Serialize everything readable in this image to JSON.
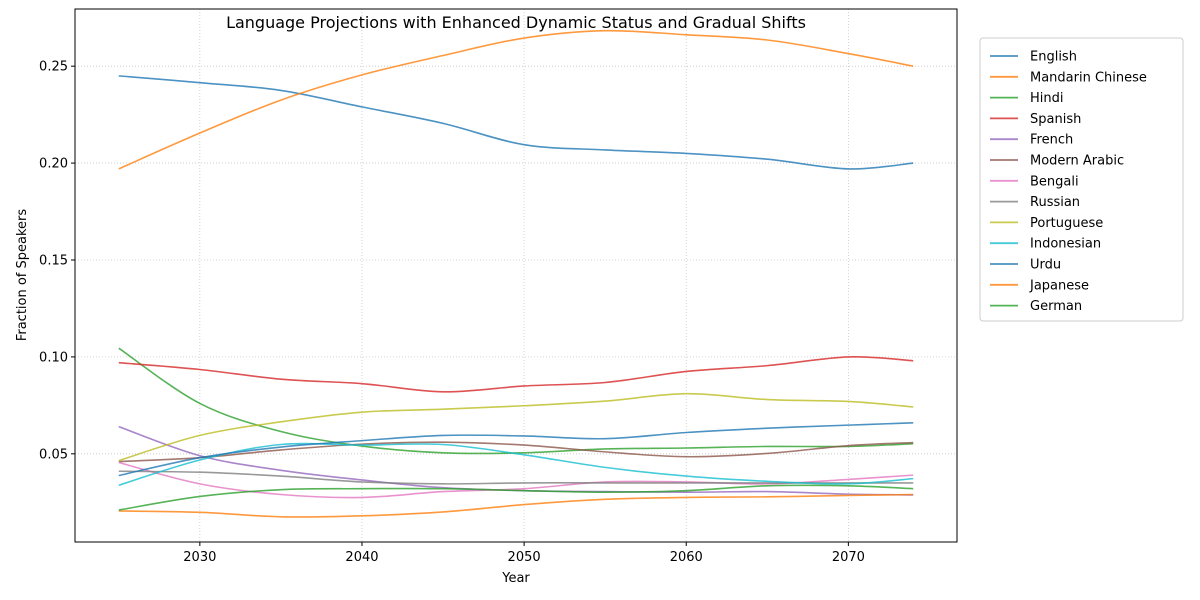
{
  "chart_data": {
    "type": "line",
    "title": "Language Projections with Enhanced Dynamic Status and Gradual Shifts",
    "xlabel": "Year",
    "ylabel": "Fraction of Speakers",
    "xlim": [
      2022.3,
      2076.7
    ],
    "ylim": [
      0.0045,
      0.2795
    ],
    "xticks": [
      2030,
      2040,
      2050,
      2060,
      2070
    ],
    "yticks": [
      0.05,
      0.1,
      0.15,
      0.2,
      0.25
    ],
    "ytick_labels": [
      "0.05",
      "0.10",
      "0.15",
      "0.20",
      "0.25"
    ],
    "grid": true,
    "legend_position": "outside-top-right",
    "x_knots": [
      2025,
      2030,
      2035,
      2040,
      2045,
      2050,
      2055,
      2060,
      2065,
      2070,
      2074
    ],
    "series": [
      {
        "name": "English",
        "color": "#1f77b4",
        "values": [
          0.245,
          0.2415,
          0.2375,
          0.229,
          0.2205,
          0.2095,
          0.2068,
          0.205,
          0.202,
          0.197,
          0.2
        ]
      },
      {
        "name": "Mandarin Chinese",
        "color": "#ff7f0e",
        "values": [
          0.197,
          0.2155,
          0.2325,
          0.2455,
          0.2555,
          0.2645,
          0.2683,
          0.2662,
          0.2635,
          0.2565,
          0.25
        ]
      },
      {
        "name": "Hindi",
        "color": "#2ca02c",
        "values": [
          0.1045,
          0.076,
          0.0615,
          0.054,
          0.0505,
          0.0505,
          0.0525,
          0.053,
          0.0538,
          0.0538,
          0.0552
        ]
      },
      {
        "name": "Spanish",
        "color": "#d62728",
        "values": [
          0.097,
          0.0935,
          0.0885,
          0.0862,
          0.082,
          0.085,
          0.0868,
          0.0925,
          0.0955,
          0.1,
          0.098
        ]
      },
      {
        "name": "French",
        "color": "#9467bd",
        "values": [
          0.064,
          0.049,
          0.0415,
          0.0365,
          0.0325,
          0.031,
          0.0305,
          0.0302,
          0.0305,
          0.0292,
          0.0288
        ]
      },
      {
        "name": "Modern Arabic",
        "color": "#8c564b",
        "values": [
          0.046,
          0.048,
          0.052,
          0.055,
          0.056,
          0.0545,
          0.051,
          0.0485,
          0.0502,
          0.0542,
          0.0558
        ]
      },
      {
        "name": "Bengali",
        "color": "#e377c2",
        "values": [
          0.0455,
          0.0345,
          0.029,
          0.0275,
          0.0305,
          0.032,
          0.0355,
          0.0355,
          0.0345,
          0.0368,
          0.039
        ]
      },
      {
        "name": "Russian",
        "color": "#7f7f7f",
        "values": [
          0.041,
          0.0405,
          0.0385,
          0.0355,
          0.0345,
          0.035,
          0.035,
          0.035,
          0.035,
          0.035,
          0.035
        ]
      },
      {
        "name": "Portuguese",
        "color": "#bcbd22",
        "values": [
          0.0465,
          0.0595,
          0.0665,
          0.0715,
          0.073,
          0.0748,
          0.0772,
          0.081,
          0.078,
          0.077,
          0.0742
        ]
      },
      {
        "name": "Indonesian",
        "color": "#17becf",
        "values": [
          0.0338,
          0.0468,
          0.0548,
          0.0545,
          0.0548,
          0.0495,
          0.043,
          0.0385,
          0.0358,
          0.0345,
          0.0372
        ]
      },
      {
        "name": "Urdu",
        "color": "#1f77b4",
        "values": [
          0.0388,
          0.048,
          0.0535,
          0.0568,
          0.0595,
          0.0592,
          0.0578,
          0.061,
          0.0632,
          0.0648,
          0.066
        ]
      },
      {
        "name": "Japanese",
        "color": "#ff7f0e",
        "values": [
          0.0205,
          0.0198,
          0.0175,
          0.018,
          0.02,
          0.0238,
          0.0265,
          0.0275,
          0.0278,
          0.0285,
          0.029
        ]
      },
      {
        "name": "German",
        "color": "#2ca02c",
        "values": [
          0.021,
          0.028,
          0.0315,
          0.032,
          0.032,
          0.031,
          0.0302,
          0.031,
          0.0335,
          0.0335,
          0.032
        ]
      }
    ]
  }
}
